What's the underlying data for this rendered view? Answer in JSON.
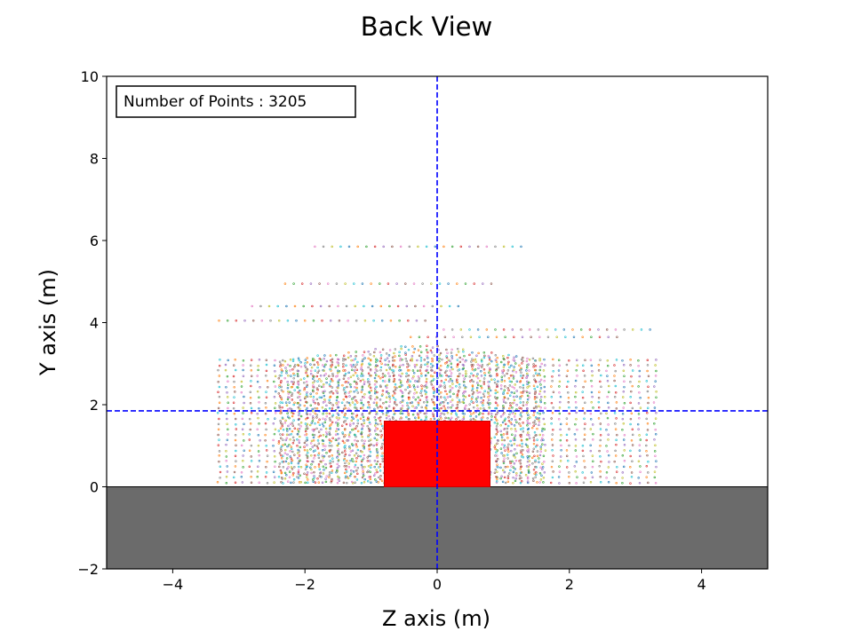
{
  "chart_data": {
    "type": "scatter",
    "title": "Back View",
    "xlabel": "Z axis (m)",
    "ylabel": "Y axis (m)",
    "xlim": [
      -5,
      5
    ],
    "ylim": [
      -2,
      10
    ],
    "xticks": [
      -4,
      -2,
      0,
      2,
      4
    ],
    "yticks": [
      -2,
      0,
      2,
      4,
      6,
      8,
      10
    ],
    "xtick_labels": [
      "−4",
      "−2",
      "0",
      "2",
      "4"
    ],
    "ytick_labels": [
      "−2",
      "0",
      "2",
      "4",
      "6",
      "8",
      "10"
    ],
    "info_box": "Number of Points : 3205",
    "crosshair": {
      "z": 0,
      "y": 1.85,
      "color": "#0000ff",
      "style": "dashed"
    },
    "ground": {
      "y_top": 0,
      "y_bottom": -2,
      "color": "#6b6b6b"
    },
    "object_box": {
      "z_min": -0.8,
      "z_max": 0.8,
      "y_min": 0,
      "y_max": 1.6,
      "color": "#ff0000"
    },
    "point_colors": [
      "#1f77b4",
      "#ff7f0e",
      "#2ca02c",
      "#d62728",
      "#9467bd",
      "#8c564b",
      "#e377c2",
      "#7f7f7f",
      "#bcbd22",
      "#17becf"
    ],
    "point_bands": [
      {
        "z_min": -1.85,
        "z_max": 1.35,
        "y": 5.85,
        "step": 0.13
      },
      {
        "z_min": -2.3,
        "z_max": 0.9,
        "y": 4.95,
        "step": 0.13
      },
      {
        "z_min": -2.8,
        "z_max": 0.4,
        "y": 4.4,
        "step": 0.13
      },
      {
        "z_min": -3.3,
        "z_max": -0.1,
        "y": 4.05,
        "step": 0.13
      },
      {
        "z_min": 0.1,
        "z_max": 3.3,
        "y": 3.83,
        "step": 0.13
      },
      {
        "z_min": -0.4,
        "z_max": 2.8,
        "y": 3.65,
        "step": 0.13
      }
    ],
    "point_grid": {
      "z_min": -3.3,
      "z_max": 3.3,
      "y_min": 0.1,
      "y_max": 3.2,
      "z_step": 0.12,
      "y_step": 0.13,
      "inner_z_min": -2.4,
      "inner_z_max": 1.6,
      "inner_y_max": 3.45
    }
  }
}
